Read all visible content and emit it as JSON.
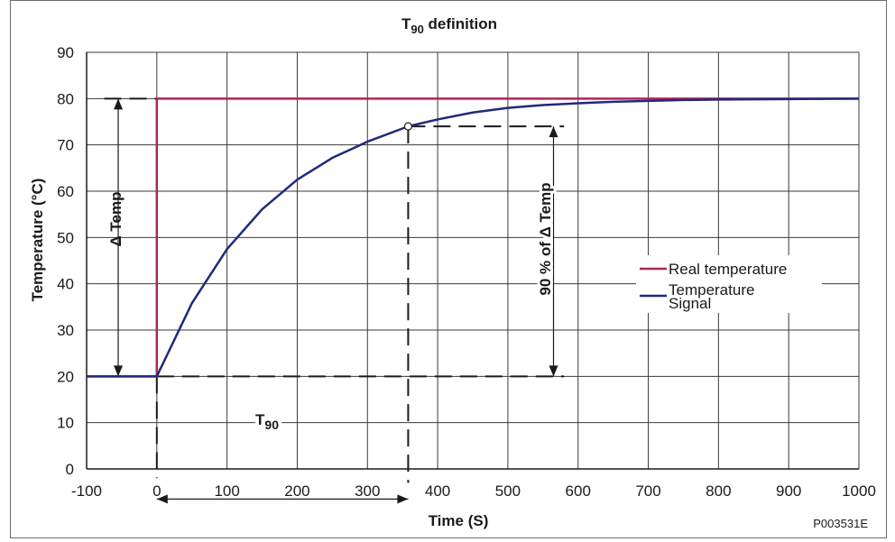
{
  "chart_data": {
    "type": "line",
    "title_main": "T",
    "title_sub": "90",
    "title_rest": " definition",
    "xlabel": "Time (S)",
    "ylabel": "Temperature (°C)",
    "xlim": [
      -100,
      1000
    ],
    "ylim": [
      0,
      90
    ],
    "x_ticks": [
      -100,
      0,
      100,
      200,
      300,
      400,
      500,
      600,
      700,
      800,
      900,
      1000
    ],
    "y_ticks": [
      0,
      10,
      20,
      30,
      40,
      50,
      60,
      70,
      80,
      90
    ],
    "grid": true,
    "legend_position": "center-right",
    "series": [
      {
        "name": "Real temperature",
        "color": "#b0245a",
        "x": [
          -100,
          0,
          0,
          1000
        ],
        "y": [
          20,
          20,
          80,
          80
        ]
      },
      {
        "name": "Temperature Signal",
        "color": "#1f2a7a",
        "x": [
          -100,
          0,
          50,
          100,
          150,
          200,
          250,
          300,
          358,
          400,
          450,
          500,
          550,
          600,
          650,
          700,
          750,
          800,
          850,
          900,
          950,
          1000
        ],
        "y": [
          20,
          20,
          35.8,
          47.5,
          56.1,
          62.5,
          67.2,
          70.7,
          74.0,
          75.5,
          77.0,
          78.0,
          78.6,
          79.0,
          79.3,
          79.5,
          79.7,
          79.8,
          79.85,
          79.9,
          79.95,
          80.0
        ]
      }
    ],
    "marker": {
      "x": 358,
      "y": 74
    },
    "annotations": {
      "delta_temp": "Δ Temp",
      "ninety_pct": "90 % of Δ Temp",
      "t90_main": "T",
      "t90_sub": "90"
    },
    "figure_code": "P003531E"
  }
}
